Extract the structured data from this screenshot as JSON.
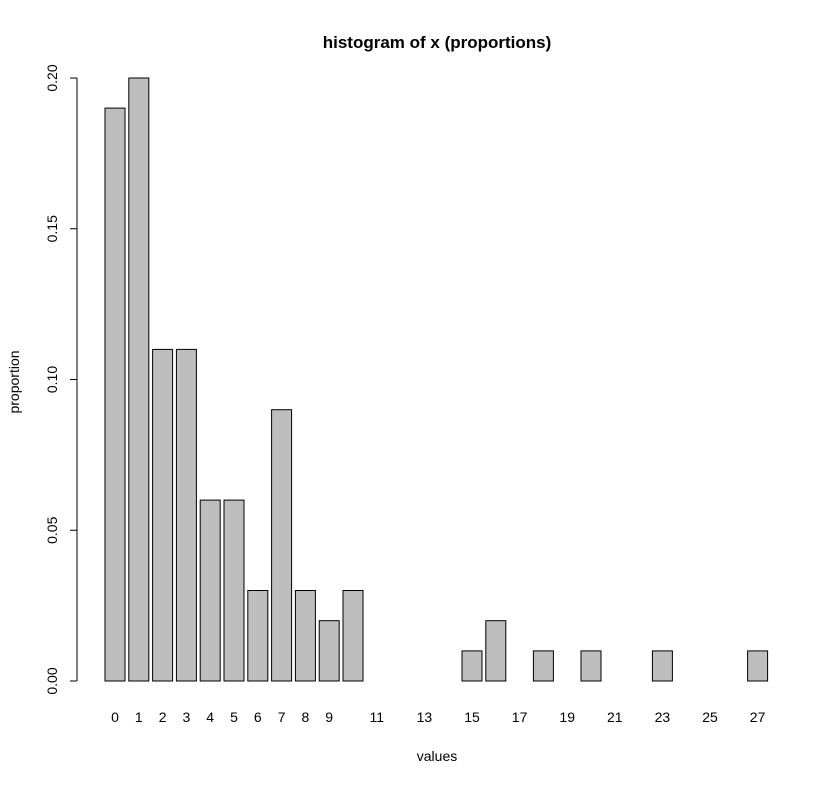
{
  "chart_data": {
    "type": "bar",
    "title": "histogram of x (proportions)",
    "xlabel": "values",
    "ylabel": "proportion",
    "categories": [
      "0",
      "1",
      "2",
      "3",
      "4",
      "5",
      "6",
      "7",
      "8",
      "9",
      "10",
      "11",
      "12",
      "13",
      "14",
      "15",
      "16",
      "17",
      "18",
      "19",
      "20",
      "21",
      "22",
      "23",
      "24",
      "25",
      "26",
      "27"
    ],
    "values": [
      0.19,
      0.2,
      0.11,
      0.11,
      0.06,
      0.06,
      0.03,
      0.09,
      0.03,
      0.02,
      0.03,
      0,
      0,
      0,
      0,
      0.01,
      0.02,
      0,
      0.01,
      0,
      0.01,
      0,
      0,
      0.01,
      0,
      0,
      0,
      0.01
    ],
    "x_tick_labels": [
      "0",
      "1",
      "2",
      "3",
      "4",
      "5",
      "6",
      "7",
      "8",
      "9",
      "11",
      "13",
      "15",
      "17",
      "19",
      "21",
      "23",
      "25",
      "27"
    ],
    "y_ticks": [
      0.0,
      0.05,
      0.1,
      0.15,
      0.2
    ],
    "y_tick_labels": [
      "0.00",
      "0.05",
      "0.10",
      "0.15",
      "0.20"
    ],
    "ylim": [
      0,
      0.2
    ],
    "colors": {
      "bar_fill": "#bebebe",
      "bar_stroke": "#000000"
    },
    "grid": false,
    "legend": "none"
  }
}
